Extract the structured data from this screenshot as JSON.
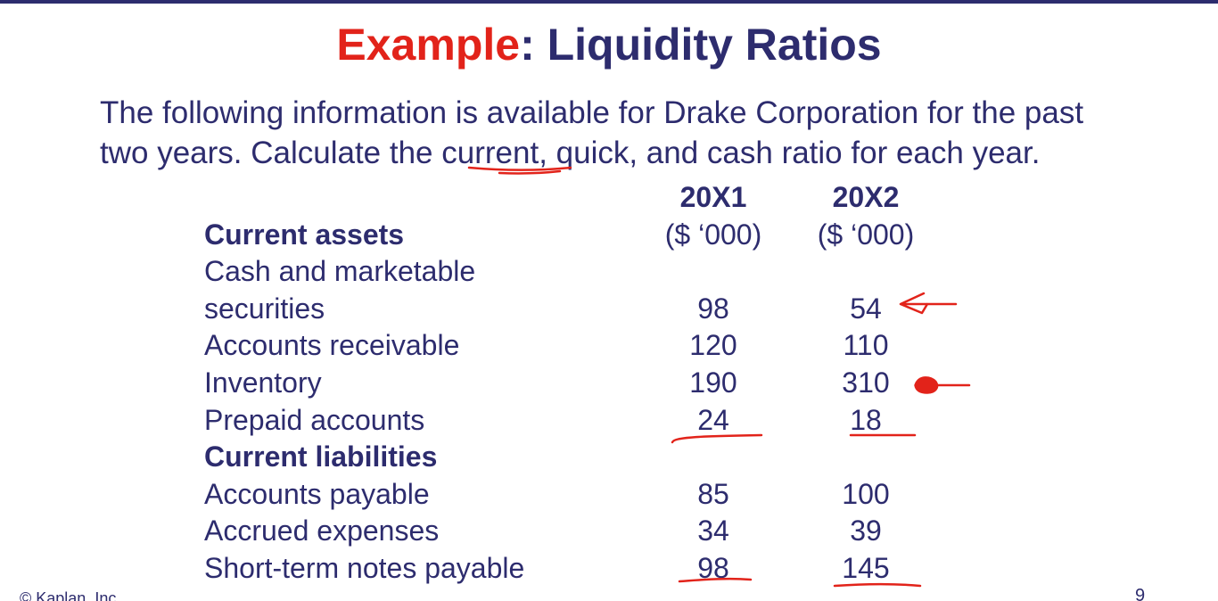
{
  "slide": {
    "title_accent": "Example",
    "title_rest": ": Liquidity Ratios",
    "intro_line1": "The following information is available for Drake Corporation for the past",
    "intro_line2_before": "two years. Calculate the ",
    "intro_line2_underlined": "current",
    "intro_line2_after": ", quick, and cash ratio for each year.",
    "copyright": "© Kaplan, Inc.",
    "page_number": "9"
  },
  "table": {
    "year_headers": [
      "20X1",
      "20X2"
    ],
    "section_assets": "Current assets",
    "unit_label": "($ ‘000)",
    "cash_label_line1": "Cash and marketable",
    "cash_label_line2": "securities",
    "cash_values": [
      "98",
      "54"
    ],
    "receivable_label": "Accounts receivable",
    "receivable_values": [
      "120",
      "110"
    ],
    "inventory_label": "Inventory",
    "inventory_values": [
      "190",
      "310"
    ],
    "prepaid_label": "Prepaid accounts",
    "prepaid_values": [
      "24",
      "18"
    ],
    "section_liabilities": "Current liabilities",
    "payable_label": "Accounts payable",
    "payable_values": [
      "85",
      "100"
    ],
    "accrued_label": "Accrued expenses",
    "accrued_values": [
      "34",
      "39"
    ],
    "notes_label": "Short-term notes payable",
    "notes_values": [
      "98",
      "145"
    ]
  },
  "colors": {
    "text": "#2d2c6e",
    "accent": "#e2231a",
    "annotation_ink": "#e2231a"
  }
}
